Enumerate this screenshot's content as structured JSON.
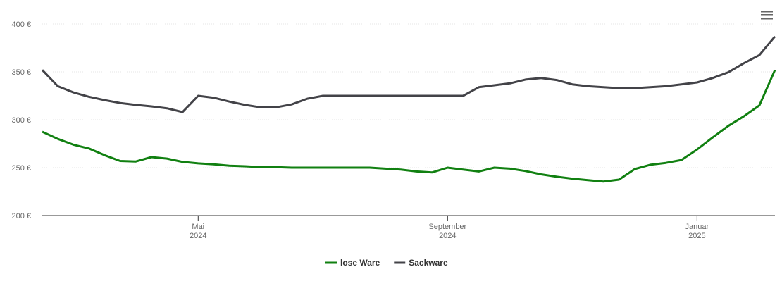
{
  "chart_data": {
    "type": "line",
    "categories": [
      null,
      null,
      null,
      null,
      null,
      null,
      null,
      null,
      null,
      null,
      "Mai\n2024",
      null,
      null,
      null,
      null,
      null,
      null,
      null,
      null,
      null,
      null,
      null,
      null,
      null,
      null,
      null,
      "September\n2024",
      null,
      null,
      null,
      null,
      null,
      null,
      null,
      null,
      null,
      null,
      null,
      null,
      null,
      null,
      null,
      "Januar\n2025",
      null,
      null,
      null,
      null,
      null
    ],
    "series": [
      {
        "name": "lose Ware",
        "color": "#118011",
        "values": [
          287.5,
          280,
          274,
          270,
          263,
          257,
          256.5,
          261,
          259.5,
          256,
          254.5,
          253.5,
          252,
          251.5,
          250.5,
          250.5,
          250,
          250,
          250,
          250,
          250,
          250,
          249,
          248,
          246,
          245,
          250,
          248,
          246,
          250,
          249,
          246.5,
          243,
          240.5,
          238.5,
          237,
          235.5,
          237.5,
          248.5,
          253,
          255,
          258,
          269,
          281.5,
          293.5,
          303.5,
          315,
          352
        ]
      },
      {
        "name": "Sackware",
        "color": "#434348",
        "values": [
          352,
          335,
          328.5,
          324,
          320.5,
          317.5,
          315.5,
          314,
          312,
          308,
          325,
          323,
          319,
          315.5,
          313,
          313,
          316,
          322,
          325,
          325,
          325,
          325,
          325,
          325,
          325,
          325,
          325,
          325,
          334,
          336,
          338,
          342,
          343.5,
          341.5,
          337,
          335,
          334,
          333,
          333,
          334,
          335,
          337,
          339,
          343.5,
          349.5,
          359,
          367.5,
          387
        ]
      }
    ],
    "ylim": [
      200,
      400
    ],
    "yticks": [
      {
        "value": 200,
        "label": "200 €"
      },
      {
        "value": 250,
        "label": "250 €"
      },
      {
        "value": 300,
        "label": "300 €"
      },
      {
        "value": 350,
        "label": "350 €"
      },
      {
        "value": 400,
        "label": "400 €"
      }
    ],
    "grid": true,
    "legend": "bottom"
  }
}
